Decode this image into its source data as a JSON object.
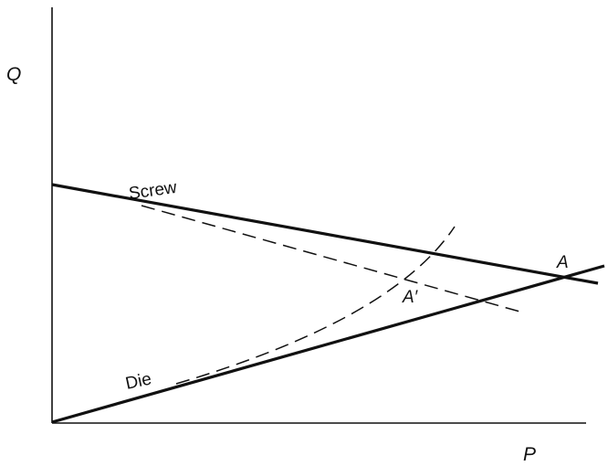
{
  "axes": {
    "y_label": "Q",
    "x_label": "P"
  },
  "curves": {
    "screw_label": "Screw",
    "die_label": "Die"
  },
  "points": {
    "operating_point": "A",
    "shifted_point": "A′"
  },
  "colors": {
    "ink": "#111111",
    "background": "#ffffff"
  }
}
